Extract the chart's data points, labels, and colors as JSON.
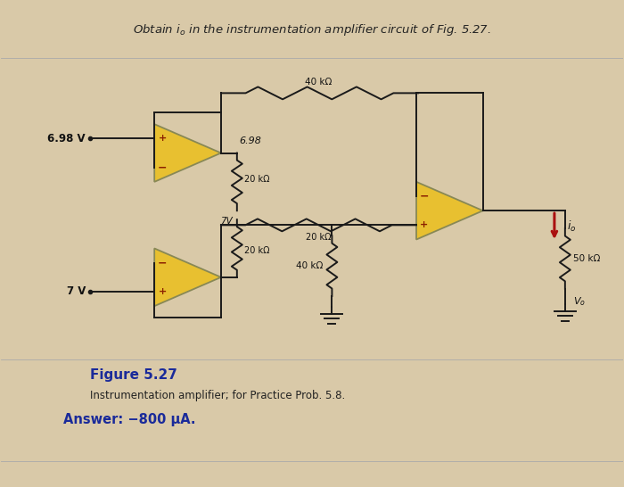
{
  "bg_color": "#d9c9a8",
  "title_text": "Obtain $i_o$ in the instrumentation amplifier circuit of Fig. 5.27.",
  "fig_label": "Figure 5.27",
  "fig_caption": "Instrumentation amplifier; for Practice Prob. 5.8.",
  "answer_text": "Answer: −800 μA.",
  "v1": "6.98 V",
  "v2": "7 V",
  "r40k_top": "40 kΩ",
  "r20k_top": "20 kΩ",
  "r20k_bot": "20 kΩ",
  "r40k_bot": "40 kΩ",
  "r_load": "50 kΩ",
  "node_label": "7V",
  "out_label": "6.98",
  "io_label": "$i_o$",
  "vo_label": "$V_o$",
  "op_fill": "#e8c030",
  "op_edge": "#888855",
  "wire_color": "#1a1a1a",
  "res_color": "#1a1a1a",
  "arrow_color": "#aa1010",
  "text_color": "#111111",
  "fig_label_color": "#1a2a9a",
  "answer_color": "#1a2a9a",
  "plus_color": "#8b2000",
  "minus_color": "#8b2000"
}
